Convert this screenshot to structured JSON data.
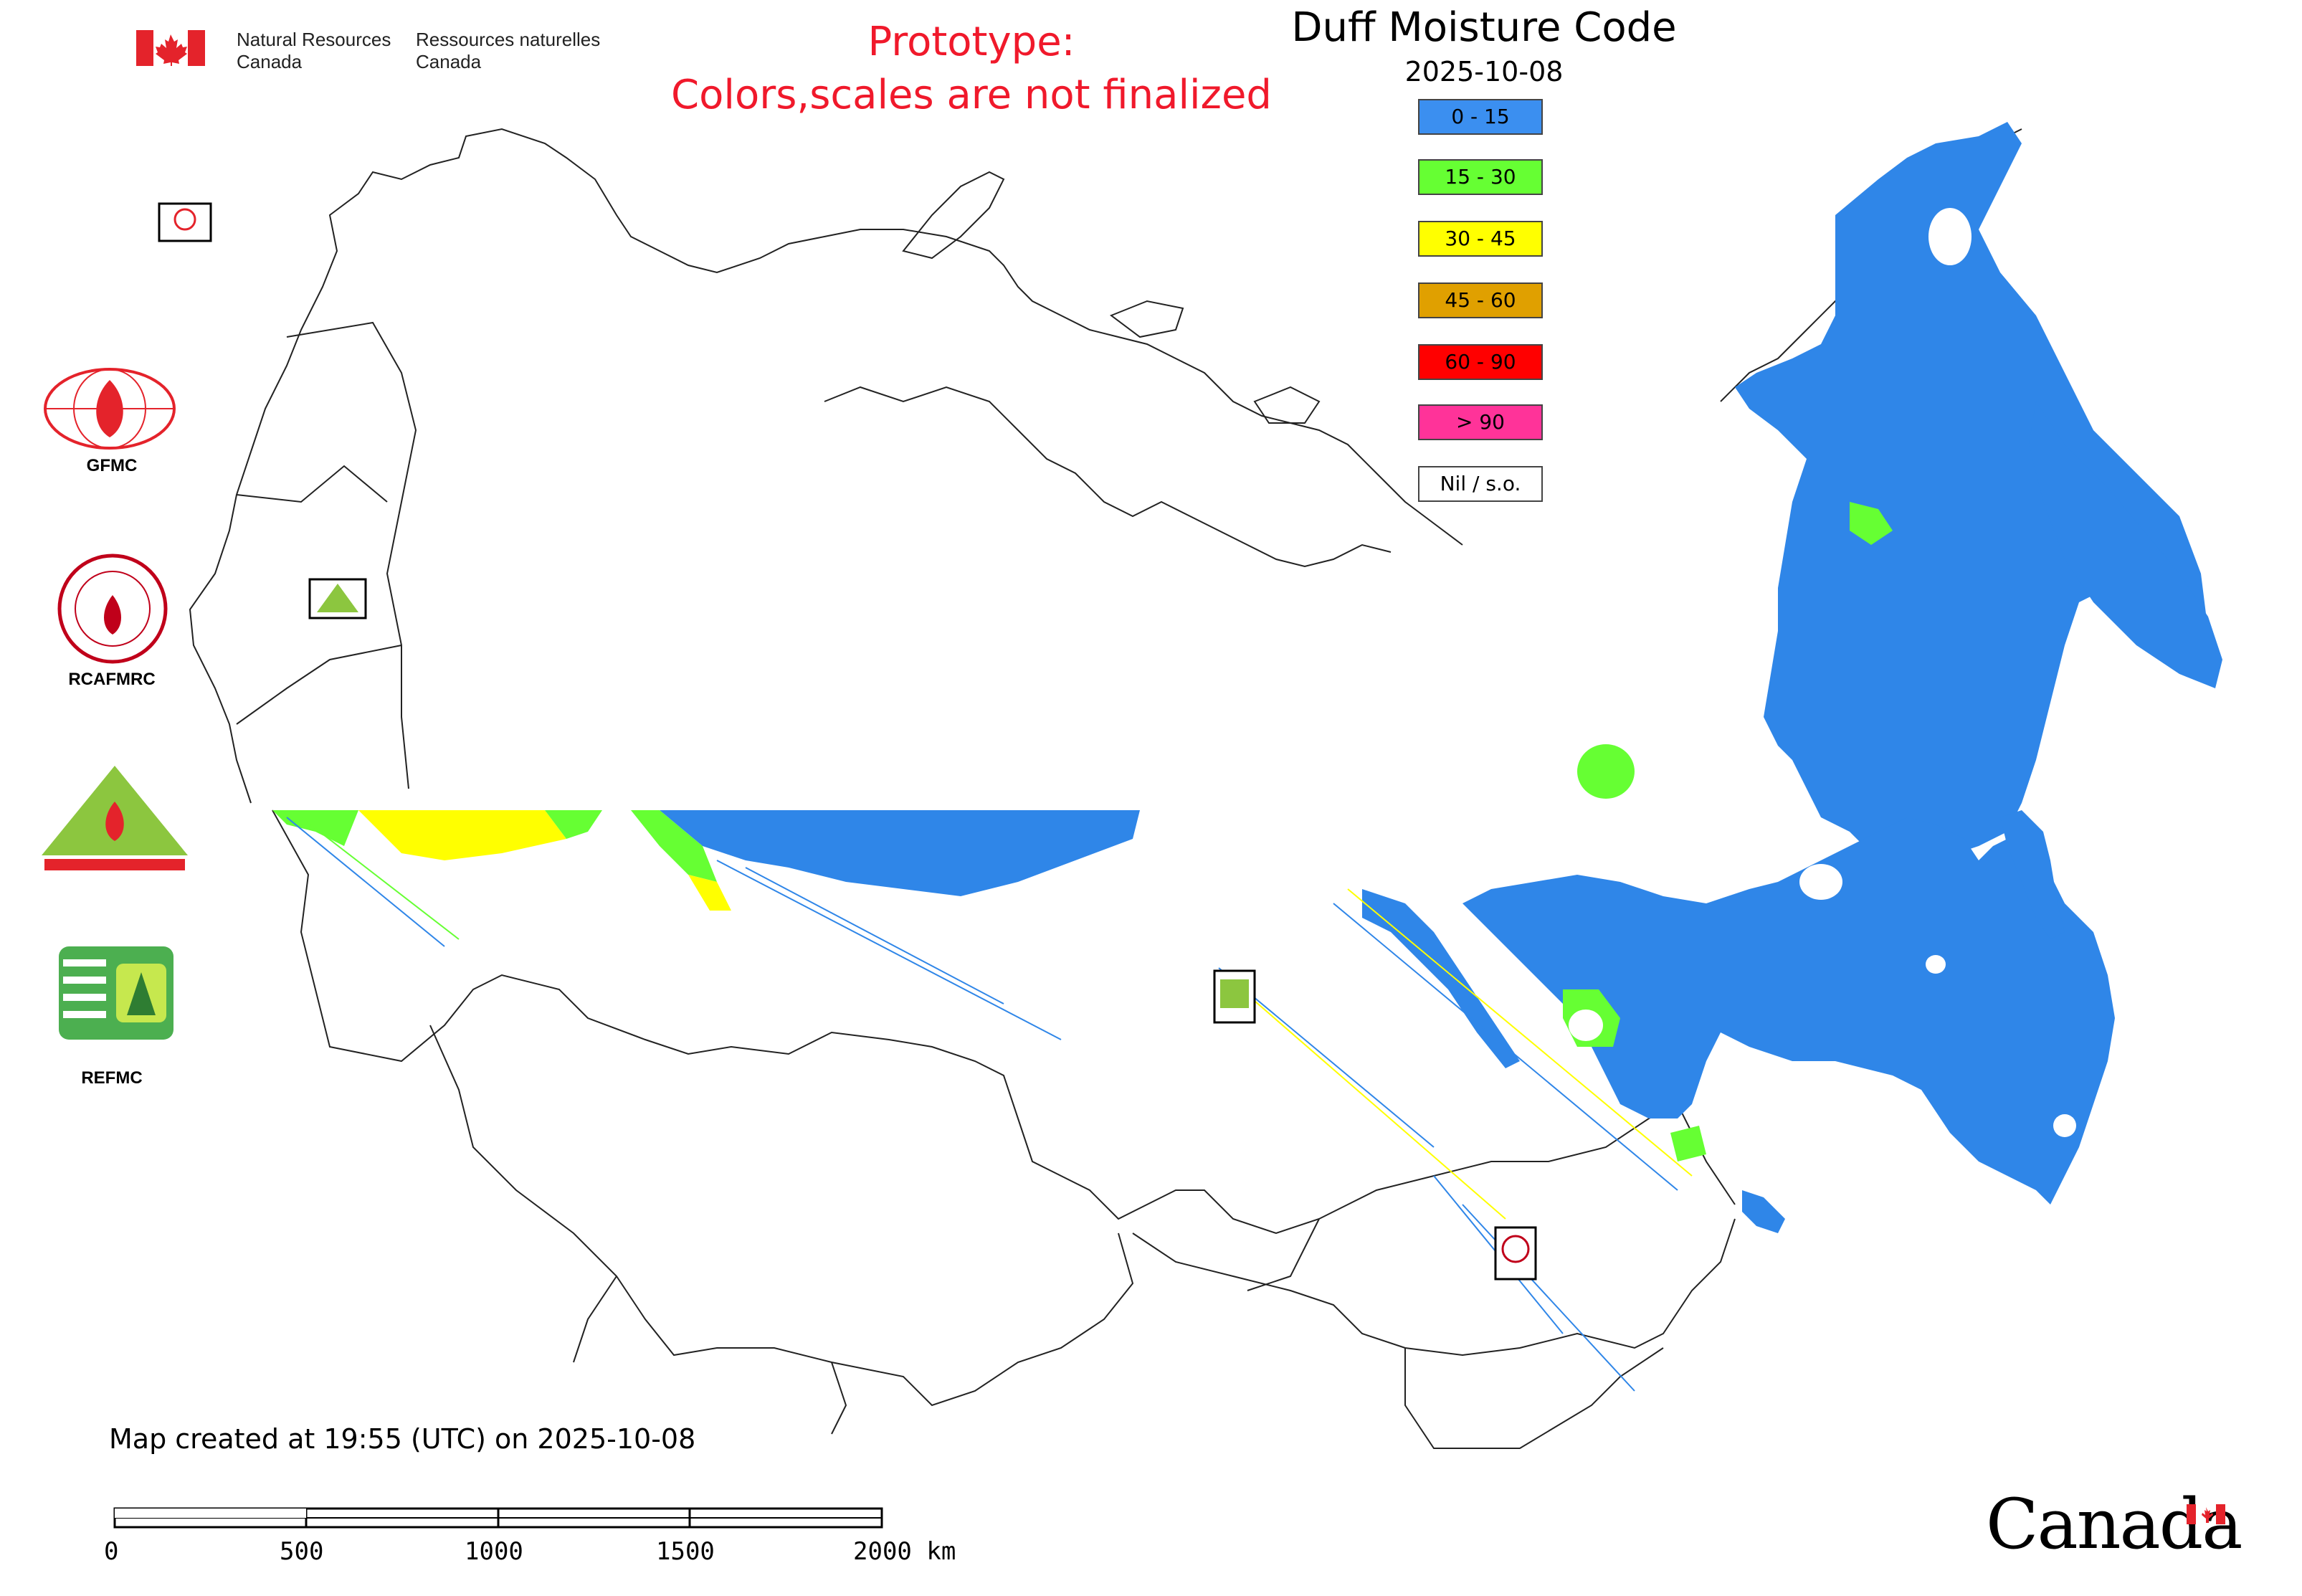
{
  "header": {
    "agency_en_line1": "Natural Resources",
    "agency_en_line2": "Canada",
    "agency_fr_line1": "Ressources naturelles",
    "agency_fr_line2": "Canada",
    "prototype_line1": "Prototype:",
    "prototype_line2": "Colors,scales are not finalized"
  },
  "legend": {
    "title": "Duff Moisture Code",
    "date": "2025-10-08",
    "items": [
      {
        "label": "0 - 15",
        "color": "#3b8ff0"
      },
      {
        "label": "15 - 30",
        "color": "#66ff33"
      },
      {
        "label": "30 - 45",
        "color": "#ffff00"
      },
      {
        "label": "45 - 60",
        "color": "#e0a000"
      },
      {
        "label": "60 - 90",
        "color": "#ff0000"
      },
      {
        "label": "> 90",
        "color": "#ff3399"
      },
      {
        "label": "Nil / s.o.",
        "color": "#ffffff"
      }
    ]
  },
  "side_logos": [
    {
      "caption": "GFMC",
      "icon": "gfmc-logo-icon"
    },
    {
      "caption": "RCAFMRC",
      "icon": "rcafmrc-logo-icon"
    },
    {
      "caption": "",
      "icon": "reefmc-logo-icon"
    },
    {
      "caption": "REFMC",
      "icon": "refmc-logo-icon"
    }
  ],
  "footer": {
    "created": "Map created at 19:55 (UTC) on 2025-10-08",
    "scale_labels": [
      "0",
      "500",
      "1000",
      "1500",
      "2000 km"
    ],
    "wordmark": "Canada"
  }
}
